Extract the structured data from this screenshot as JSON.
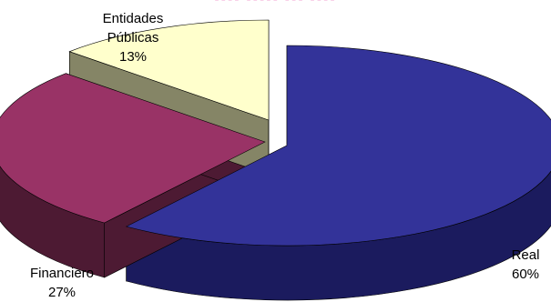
{
  "chart_data": {
    "type": "pie",
    "style": "3d-exploded",
    "title": "",
    "slices": [
      {
        "label": "Real",
        "value": 60,
        "percent_label": "60%",
        "top_color": "#333399",
        "side_color": "#1b1b5e"
      },
      {
        "label": "Financiero",
        "value": 27,
        "percent_label": "27%",
        "top_color": "#993366",
        "side_color": "#4d1a33"
      },
      {
        "label": "Entidades Públicas",
        "label_lines": [
          "Entidades",
          "Públicas"
        ],
        "value": 13,
        "percent_label": "13%",
        "top_color": "#ffffcc",
        "side_color": "#858566"
      }
    ],
    "legend": "none"
  }
}
